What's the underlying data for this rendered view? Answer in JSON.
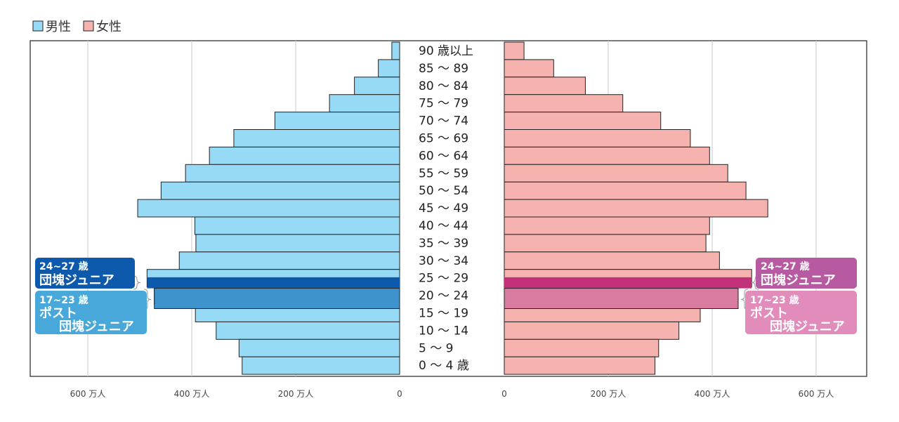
{
  "chart_data": {
    "type": "bar",
    "subtype": "population-pyramid",
    "legend": [
      {
        "name": "男性",
        "color": "#96daf5"
      },
      {
        "name": "女性",
        "color": "#f6b2ae"
      }
    ],
    "categories": [
      "90 歳以上",
      "85 ～ 89",
      "80 ～ 84",
      "75 ～ 79",
      "70 ～ 74",
      "65 ～ 69",
      "60 ～ 64",
      "55 ～ 59",
      "50 ～ 54",
      "45 ～ 49",
      "40 ～ 44",
      "35 ～ 39",
      "30 ～ 34",
      "25 ～ 29",
      "20 ～ 24",
      "15 ～ 19",
      "10 ～ 14",
      "5 ～ 9",
      "0 ～ 4 歳"
    ],
    "series": [
      {
        "name": "男性",
        "values": [
          15,
          41,
          87,
          135,
          240,
          319,
          366,
          412,
          459,
          504,
          394,
          392,
          424,
          486,
          472,
          393,
          353,
          309,
          303
        ]
      },
      {
        "name": "女性",
        "values": [
          38,
          95,
          156,
          228,
          301,
          358,
          395,
          430,
          465,
          507,
          395,
          388,
          414,
          476,
          450,
          377,
          336,
          297,
          290
        ]
      }
    ],
    "x_ticks_left": [
      "600 万人",
      "400 万人",
      "200 万人",
      "0"
    ],
    "x_ticks_right": [
      "0",
      "200 万人",
      "400 万人",
      "600 万人"
    ],
    "xlim": [
      0,
      700
    ],
    "grid": true,
    "annotations": [
      {
        "side": "male",
        "line1": "24~27 歳",
        "line2": "団塊ジュニア",
        "color": "#0d59ab"
      },
      {
        "side": "male",
        "line1": "17~23 歳",
        "line2": "ポスト",
        "line3": "団塊ジュニア",
        "color": "#47a8d9"
      },
      {
        "side": "female",
        "line1": "24~27 歳",
        "line2": "団塊ジュニア",
        "color": "#b85aa2"
      },
      {
        "side": "female",
        "line1": "17~23 歳",
        "line2": "ポスト",
        "line3": "団塊ジュニア",
        "color": "#e28cbc"
      }
    ],
    "highlights": [
      {
        "label": "24~27 歳",
        "male_color": "#0d59ab",
        "female_color": "#c2307a"
      },
      {
        "label": "17~23 歳",
        "male_color": "#3f93cd",
        "female_color": "#d97aa0"
      }
    ]
  }
}
